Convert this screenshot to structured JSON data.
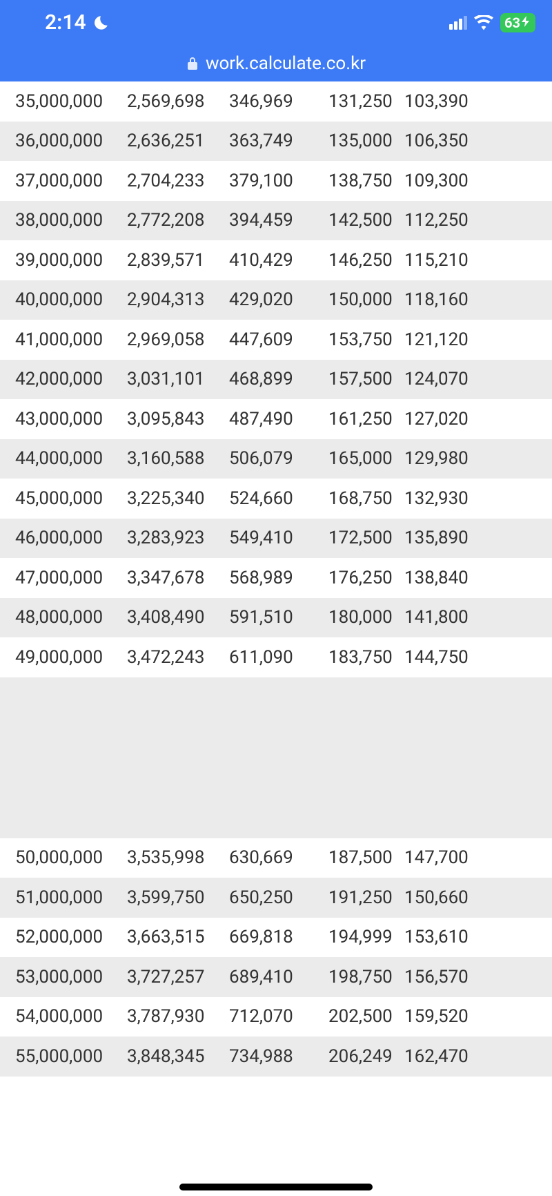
{
  "statusBar": {
    "time": "2:14",
    "batteryLevel": "63"
  },
  "urlBar": {
    "url": "work.calculate.co.kr"
  },
  "colors": {
    "headerBg": "#3d7af5",
    "headerText": "#ffffff",
    "rowEvenBg": "#ebebeb",
    "rowOddBg": "#ffffff",
    "textColor": "#333333",
    "batteryGreen": "#34c759"
  },
  "table": {
    "type": "table",
    "columnCount": 5,
    "rows1": [
      [
        "35,000,000",
        "2,569,698",
        "346,969",
        "131,250",
        "103,390"
      ],
      [
        "36,000,000",
        "2,636,251",
        "363,749",
        "135,000",
        "106,350"
      ],
      [
        "37,000,000",
        "2,704,233",
        "379,100",
        "138,750",
        "109,300"
      ],
      [
        "38,000,000",
        "2,772,208",
        "394,459",
        "142,500",
        "112,250"
      ],
      [
        "39,000,000",
        "2,839,571",
        "410,429",
        "146,250",
        "115,210"
      ],
      [
        "40,000,000",
        "2,904,313",
        "429,020",
        "150,000",
        "118,160"
      ],
      [
        "41,000,000",
        "2,969,058",
        "447,609",
        "153,750",
        "121,120"
      ],
      [
        "42,000,000",
        "3,031,101",
        "468,899",
        "157,500",
        "124,070"
      ],
      [
        "43,000,000",
        "3,095,843",
        "487,490",
        "161,250",
        "127,020"
      ],
      [
        "44,000,000",
        "3,160,588",
        "506,079",
        "165,000",
        "129,980"
      ],
      [
        "45,000,000",
        "3,225,340",
        "524,660",
        "168,750",
        "132,930"
      ],
      [
        "46,000,000",
        "3,283,923",
        "549,410",
        "172,500",
        "135,890"
      ],
      [
        "47,000,000",
        "3,347,678",
        "568,989",
        "176,250",
        "138,840"
      ],
      [
        "48,000,000",
        "3,408,490",
        "591,510",
        "180,000",
        "141,800"
      ],
      [
        "49,000,000",
        "3,472,243",
        "611,090",
        "183,750",
        "144,750"
      ]
    ],
    "rows2": [
      [
        "50,000,000",
        "3,535,998",
        "630,669",
        "187,500",
        "147,700"
      ],
      [
        "51,000,000",
        "3,599,750",
        "650,250",
        "191,250",
        "150,660"
      ],
      [
        "52,000,000",
        "3,663,515",
        "669,818",
        "194,999",
        "153,610"
      ],
      [
        "53,000,000",
        "3,727,257",
        "689,410",
        "198,750",
        "156,570"
      ],
      [
        "54,000,000",
        "3,787,930",
        "712,070",
        "202,500",
        "159,520"
      ],
      [
        "55,000,000",
        "3,848,345",
        "734,988",
        "206,249",
        "162,470"
      ]
    ]
  }
}
